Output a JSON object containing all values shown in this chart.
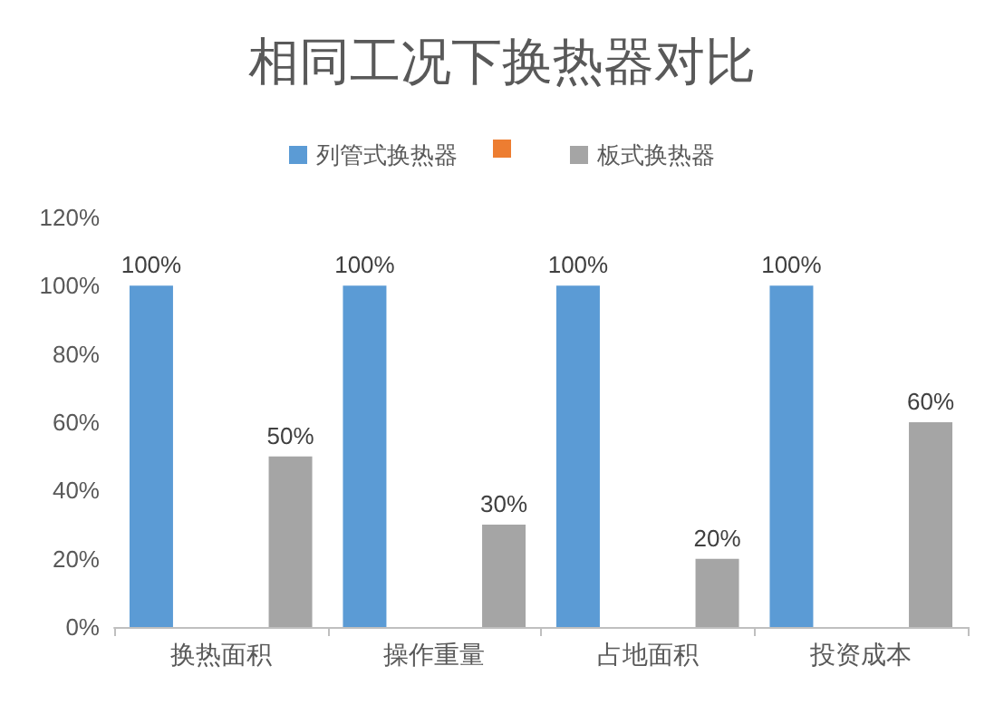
{
  "chart_data": {
    "type": "bar",
    "title": "相同工况下换热器对比",
    "categories": [
      "换热面积",
      "操作重量",
      "占地面积",
      "投资成本"
    ],
    "series": [
      {
        "name": "列管式换热器",
        "color": "#5b9bd5",
        "values": [
          100,
          100,
          100,
          100
        ],
        "value_labels": [
          "100%",
          "100%",
          "100%",
          "100%"
        ]
      },
      {
        "name": "板式换热器",
        "color": "#a5a5a5",
        "values": [
          50,
          30,
          20,
          60
        ],
        "value_labels": [
          "50%",
          "30%",
          "20%",
          "60%"
        ]
      }
    ],
    "ylim": [
      0,
      120
    ],
    "yticks": [
      {
        "value": 0,
        "label": "0%"
      },
      {
        "value": 20,
        "label": "20%"
      },
      {
        "value": 40,
        "label": "40%"
      },
      {
        "value": 60,
        "label": "60%"
      },
      {
        "value": 80,
        "label": "80%"
      },
      {
        "value": 100,
        "label": "100%"
      },
      {
        "value": 120,
        "label": "120%"
      }
    ],
    "grid": false,
    "legend": "top"
  }
}
